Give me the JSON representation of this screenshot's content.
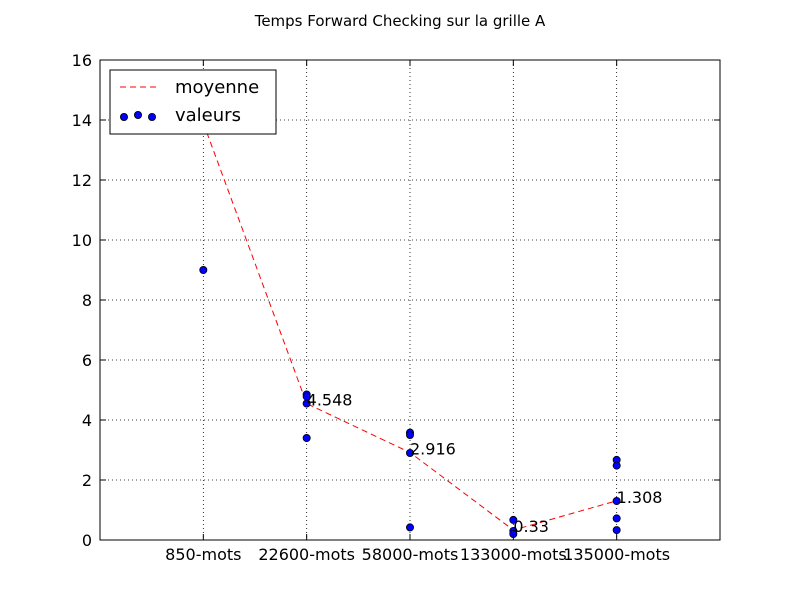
{
  "chart_data": {
    "type": "scatter",
    "title": "Temps Forward Checking sur la grille A",
    "xlabel": "",
    "ylabel": "",
    "categories": [
      "850-mots",
      "22600-mots",
      "58000-mots",
      "133000-mots",
      "135000-mots"
    ],
    "ylim": [
      0,
      16
    ],
    "yticks": [
      0,
      2,
      4,
      6,
      8,
      10,
      12,
      14,
      16
    ],
    "grid": true,
    "legend_position": "top-left",
    "series": [
      {
        "name": "moyenne",
        "type": "line",
        "style": "dashed",
        "color": "#ff0000",
        "values": [
          13.9,
          4.548,
          2.916,
          0.33,
          1.308
        ],
        "data_labels": [
          "",
          "4.548",
          "2.916",
          "0.33",
          "1.308"
        ]
      },
      {
        "name": "valeurs",
        "type": "scatter",
        "color": "#0000ff",
        "points": [
          {
            "category": 0,
            "y": 9.0
          },
          {
            "category": 1,
            "y": 4.85
          },
          {
            "category": 1,
            "y": 4.78
          },
          {
            "category": 1,
            "y": 4.55
          },
          {
            "category": 1,
            "y": 3.4
          },
          {
            "category": 2,
            "y": 3.58
          },
          {
            "category": 2,
            "y": 3.5
          },
          {
            "category": 2,
            "y": 2.9
          },
          {
            "category": 2,
            "y": 0.42
          },
          {
            "category": 3,
            "y": 0.67
          },
          {
            "category": 3,
            "y": 0.3
          },
          {
            "category": 3,
            "y": 0.2
          },
          {
            "category": 4,
            "y": 2.67
          },
          {
            "category": 4,
            "y": 2.48
          },
          {
            "category": 4,
            "y": 1.3
          },
          {
            "category": 4,
            "y": 0.72
          },
          {
            "category": 4,
            "y": 0.33
          }
        ]
      }
    ]
  }
}
